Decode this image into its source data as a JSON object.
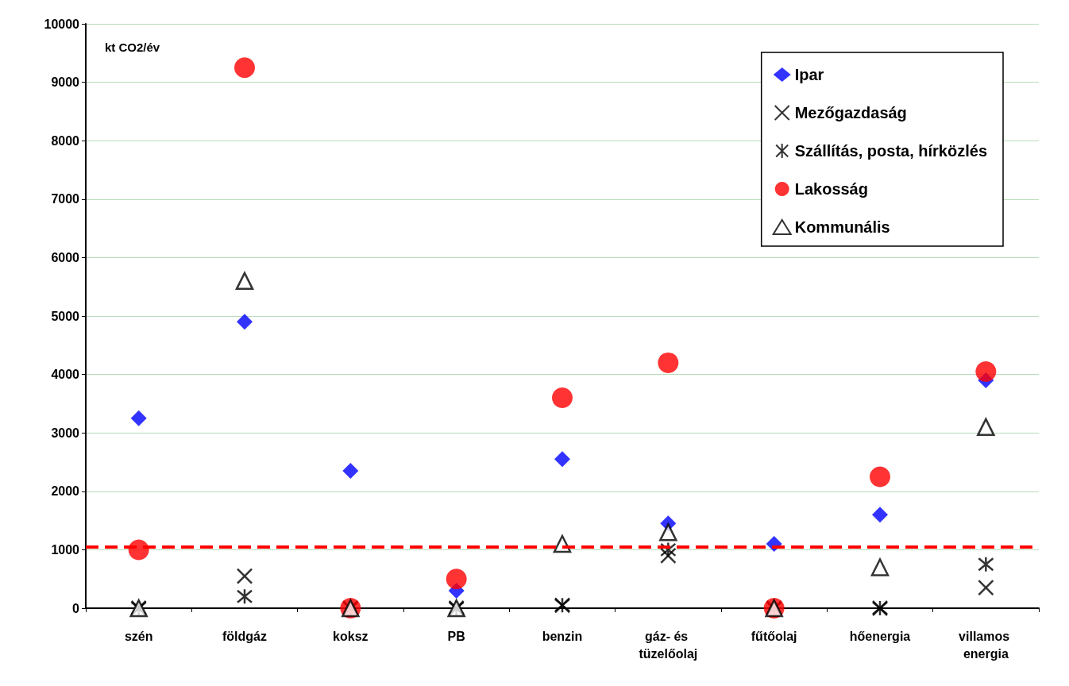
{
  "chart_data": {
    "type": "scatter",
    "ylabel": "kt CO2/év",
    "categories": [
      "szén",
      "földgáz",
      "koksz",
      "PB",
      "benzin",
      "gáz- és tüzelőolaj",
      "fűtőolaj",
      "hőenergia",
      "villamos energia"
    ],
    "series": [
      {
        "name": "Ipar",
        "color": "#0000ff",
        "marker": "diamond",
        "values": [
          3250,
          4900,
          2350,
          300,
          2550,
          1450,
          1100,
          1600,
          3900
        ]
      },
      {
        "name": "Mezőgazdaság",
        "color": "#000000",
        "marker": "cross",
        "values": [
          0,
          550,
          0,
          0,
          50,
          900,
          0,
          0,
          350
        ]
      },
      {
        "name": "Szállítás, posta, hírközlés",
        "color": "#000000",
        "values": [
          0,
          200,
          0,
          0,
          50,
          1000,
          0,
          0,
          750
        ]
      },
      {
        "name": "Lakosság",
        "color": "#ff0000",
        "marker": "circle",
        "values": [
          1000,
          9250,
          0,
          500,
          3600,
          4200,
          0,
          2250,
          4050
        ]
      },
      {
        "name": "Kommunális",
        "color": "#000000",
        "marker": "triangle",
        "values": [
          0,
          5600,
          0,
          0,
          1100,
          1300,
          0,
          700,
          3100
        ]
      }
    ],
    "ylim": [
      0,
      10000
    ],
    "yticks": [
      0,
      1000,
      2000,
      3000,
      4000,
      5000,
      6000,
      7000,
      8000,
      9000,
      10000
    ],
    "grid": "y",
    "legend": "top right",
    "ref_lines": [
      {
        "axis": "y",
        "value": 1050,
        "color": "#ff0000",
        "line_style": "dashed"
      }
    ]
  }
}
